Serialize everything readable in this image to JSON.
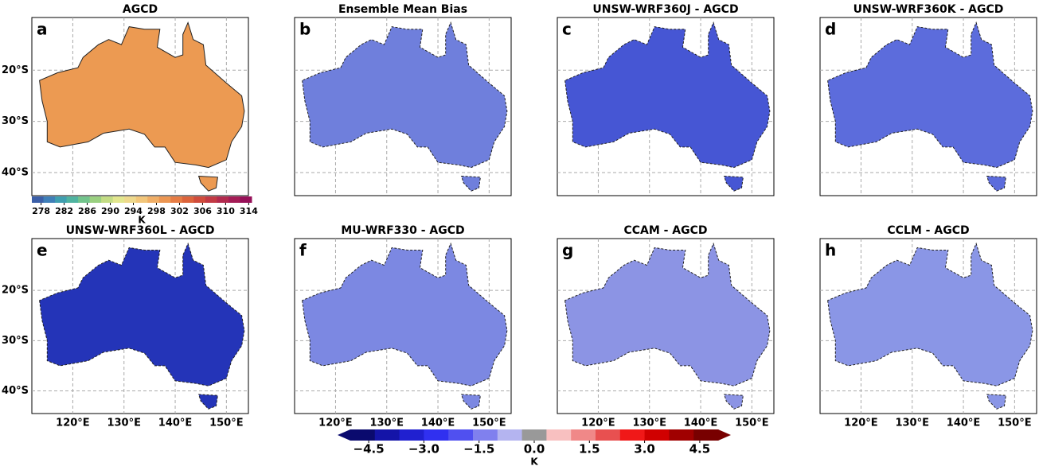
{
  "panels": [
    {
      "letter": "a",
      "title": "AGCD",
      "fill": "#ec9a52"
    },
    {
      "letter": "b",
      "title": "Ensemble Mean Bias",
      "fill": "#6f7fdc"
    },
    {
      "letter": "c",
      "title": "UNSW-WRF360J - AGCD",
      "fill": "#4656d4"
    },
    {
      "letter": "d",
      "title": "UNSW-WRF360K - AGCD",
      "fill": "#5c6cdc"
    },
    {
      "letter": "e",
      "title": "UNSW-WRF360L - AGCD",
      "fill": "#2434b8"
    },
    {
      "letter": "f",
      "title": "MU-WRF330 - AGCD",
      "fill": "#7c88e2"
    },
    {
      "letter": "g",
      "title": "CCAM - AGCD",
      "fill": "#8c94e4"
    },
    {
      "letter": "h",
      "title": "CCLM - AGCD",
      "fill": "#8a96e6"
    }
  ],
  "lat_range": [
    -44.5,
    -9.7
  ],
  "lon_range": [
    112,
    154.3
  ],
  "lat_ticks": [
    {
      "value": -20,
      "label": "20°S"
    },
    {
      "value": -30,
      "label": "30°S"
    },
    {
      "value": -40,
      "label": "40°S"
    }
  ],
  "lon_ticks": [
    {
      "value": 120,
      "label": "120°E"
    },
    {
      "value": 130,
      "label": "130°E"
    },
    {
      "value": 140,
      "label": "140°E"
    },
    {
      "value": 150,
      "label": "150°E"
    }
  ],
  "colorbar_abs": {
    "range": [
      276.4,
      314.5
    ],
    "ticks": [
      278,
      282,
      286,
      290,
      294,
      298,
      302,
      306,
      310,
      314
    ],
    "unit": "K",
    "colors": [
      "#3b5fa8",
      "#3f7fb8",
      "#3f9fb0",
      "#4fb3a0",
      "#72c48c",
      "#9ad080",
      "#c3dc84",
      "#e2e68e",
      "#eed98c",
      "#f2c67a",
      "#f0ae66",
      "#ec9652",
      "#e67c44",
      "#dc643c",
      "#d04c3c",
      "#c23a44",
      "#b22a4e",
      "#a41c56",
      "#961058"
    ]
  },
  "colorbar_bias": {
    "range": [
      -5,
      5
    ],
    "ticks": [
      {
        "value": -4.5,
        "label": "−4.5"
      },
      {
        "value": -3.0,
        "label": "−3.0"
      },
      {
        "value": -1.5,
        "label": "−1.5"
      },
      {
        "value": 0,
        "label": "0.0"
      },
      1.5,
      {
        "value": 3.0,
        "label": "3.0"
      },
      4.5
    ],
    "unit": "K",
    "colors": [
      "#0a0a6e",
      "#1414a8",
      "#2020d0",
      "#3030f0",
      "#5050f0",
      "#8080ee",
      "#b4b4f0",
      "#999999",
      "#f8c0c0",
      "#f08888",
      "#e85050",
      "#f01818",
      "#d00000",
      "#a00000",
      "#780000"
    ]
  }
}
